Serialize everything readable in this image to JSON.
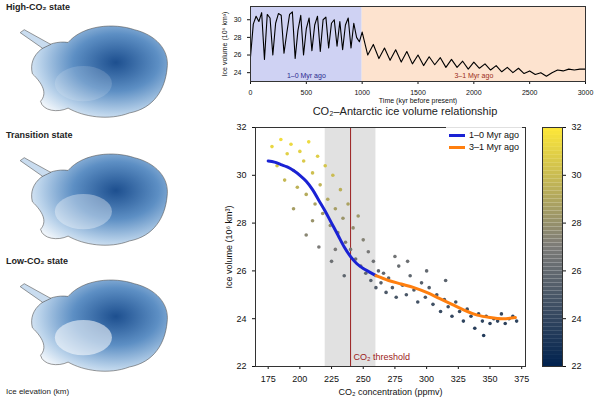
{
  "map_panels": {
    "labels": [
      "High-CO₂ state",
      "Transition state",
      "Low-CO₂ state"
    ],
    "caption": "Ice elevation (km)"
  },
  "chart_data": [
    {
      "type": "line",
      "xlabel": "Time (kyr before present)",
      "ylabel": "Ice volume (10⁶ km³)",
      "color": "#000000",
      "xlim": [
        0,
        3000
      ],
      "xticks": [
        0,
        500,
        1000,
        1500,
        2000,
        2500,
        3000
      ],
      "ylim": [
        23,
        31.5
      ],
      "yticks": [
        24,
        26,
        28,
        30
      ],
      "regions": [
        {
          "x": [
            0,
            1000
          ],
          "label": "1–0 Myr ago",
          "color": "#cfd2f3"
        },
        {
          "x": [
            1000,
            3000
          ],
          "label": "3–1 Myr ago",
          "color": "#fde3cf"
        }
      ],
      "x": [
        0,
        25,
        50,
        75,
        100,
        125,
        150,
        175,
        200,
        225,
        250,
        275,
        300,
        325,
        350,
        375,
        400,
        425,
        450,
        475,
        500,
        525,
        550,
        575,
        600,
        625,
        650,
        675,
        700,
        725,
        750,
        775,
        800,
        825,
        850,
        875,
        900,
        925,
        950,
        975,
        1000,
        1050,
        1100,
        1150,
        1200,
        1250,
        1300,
        1350,
        1400,
        1450,
        1500,
        1550,
        1600,
        1650,
        1700,
        1750,
        1800,
        1850,
        1900,
        1950,
        2000,
        2050,
        2100,
        2150,
        2200,
        2250,
        2300,
        2350,
        2400,
        2450,
        2500,
        2550,
        2600,
        2650,
        2700,
        2750,
        2800,
        2850,
        2900,
        2950,
        3000
      ],
      "values": [
        25.8,
        29.5,
        30.4,
        29.8,
        30.8,
        25.5,
        30.6,
        30.2,
        26.0,
        29.6,
        30.7,
        30.5,
        26.2,
        28.5,
        30.6,
        30.9,
        25.6,
        28.8,
        30.5,
        26.0,
        29.0,
        30.2,
        26.5,
        29.4,
        30.4,
        26.4,
        30.0,
        30.3,
        26.8,
        29.6,
        30.0,
        27.0,
        29.8,
        26.6,
        29.4,
        30.2,
        26.8,
        29.6,
        28.0,
        27.5,
        28.6,
        26.0,
        27.2,
        25.6,
        26.8,
        25.4,
        26.6,
        25.2,
        26.4,
        25.0,
        26.0,
        24.8,
        25.8,
        24.9,
        25.7,
        24.6,
        25.5,
        24.6,
        25.3,
        24.4,
        25.2,
        24.5,
        25.0,
        24.3,
        24.8,
        24.1,
        24.6,
        24.0,
        24.5,
        23.9,
        24.2,
        23.8,
        24.0,
        23.6,
        24.0,
        24.3,
        24.2,
        24.4,
        24.3,
        24.4,
        24.4
      ]
    },
    {
      "type": "scatter",
      "title": "CO₂–Antarctic ice volume relationship",
      "xlabel": "CO₂ concentration (ppmv)",
      "ylabel": "Ice volume (10⁶ km³)",
      "xlim": [
        165,
        378
      ],
      "xticks": [
        175,
        200,
        225,
        250,
        275,
        300,
        325,
        350,
        375
      ],
      "ylim": [
        22,
        32
      ],
      "yticks": [
        22,
        24,
        26,
        28,
        30,
        32
      ],
      "legend": "top-right",
      "points": {
        "x": [
          178,
          182,
          185,
          188,
          190,
          193,
          195,
          198,
          200,
          203,
          205,
          207,
          210,
          212,
          214,
          216,
          218,
          220,
          222,
          224,
          226,
          228,
          230,
          232,
          234,
          236,
          238,
          240,
          242,
          244,
          246,
          248,
          250,
          252,
          254,
          256,
          258,
          260,
          262,
          264,
          205,
          215,
          225,
          235,
          228,
          210,
          195,
          266,
          268,
          270,
          273,
          276,
          278,
          281,
          284,
          287,
          290,
          293,
          296,
          299,
          302,
          305,
          308,
          311,
          314,
          317,
          320,
          323,
          326,
          329,
          332,
          335,
          338,
          341,
          344,
          347,
          350,
          353,
          356,
          359,
          362,
          365,
          368,
          371,
          345,
          300,
          285,
          275,
          315
        ],
        "y": [
          31.2,
          30.4,
          31.5,
          29.8,
          30.9,
          31.3,
          30.2,
          29.5,
          31.0,
          30.6,
          29.2,
          31.4,
          30.1,
          28.8,
          30.8,
          29.6,
          28.4,
          30.4,
          29.0,
          27.9,
          30.0,
          28.6,
          27.6,
          29.4,
          28.2,
          27.2,
          28.8,
          26.9,
          27.8,
          26.5,
          28.3,
          26.2,
          27.3,
          25.9,
          26.8,
          25.6,
          26.4,
          25.3,
          26.0,
          25.5,
          27.5,
          27.0,
          26.4,
          25.8,
          26.9,
          28.1,
          28.6,
          25.9,
          25.1,
          25.7,
          25.3,
          24.9,
          26.2,
          25.4,
          25.0,
          25.8,
          25.2,
          24.7,
          25.5,
          24.9,
          25.3,
          24.6,
          25.0,
          24.3,
          24.8,
          24.5,
          24.1,
          24.7,
          24.3,
          23.9,
          24.4,
          24.1,
          23.6,
          24.2,
          23.9,
          24.1,
          23.8,
          24.0,
          23.9,
          24.2,
          23.8,
          24.0,
          24.1,
          23.9,
          23.3,
          26.0,
          26.4,
          26.6,
          25.6
        ]
      },
      "series": [
        {
          "name": "1–0 Myr ago",
          "type": "line",
          "color": "#1a22d4",
          "x": [
            175,
            180,
            185,
            190,
            195,
            200,
            205,
            210,
            215,
            220,
            225,
            230,
            235,
            240,
            245,
            250,
            255,
            260
          ],
          "values": [
            30.6,
            30.55,
            30.45,
            30.35,
            30.2,
            30.0,
            29.75,
            29.4,
            28.95,
            28.5,
            28.0,
            27.5,
            27.0,
            26.6,
            26.3,
            26.1,
            25.95,
            25.8
          ]
        },
        {
          "name": "3–1 Myr ago",
          "type": "line",
          "color": "#ff7f0e",
          "x": [
            260,
            270,
            280,
            290,
            300,
            310,
            320,
            330,
            340,
            350,
            360,
            370
          ],
          "values": [
            25.8,
            25.6,
            25.45,
            25.3,
            25.1,
            24.85,
            24.6,
            24.35,
            24.15,
            24.05,
            24.0,
            24.05
          ]
        }
      ],
      "threshold": {
        "x": 240,
        "label": "CO₂ threshold",
        "band": [
          220,
          260
        ],
        "color": "#9b2020"
      },
      "colorbar": {
        "range": [
          22,
          32
        ],
        "ticks": [
          22,
          24,
          26,
          28,
          30,
          32
        ],
        "colors": [
          "#00224e",
          "#7c7b78",
          "#fee838"
        ]
      }
    }
  ]
}
